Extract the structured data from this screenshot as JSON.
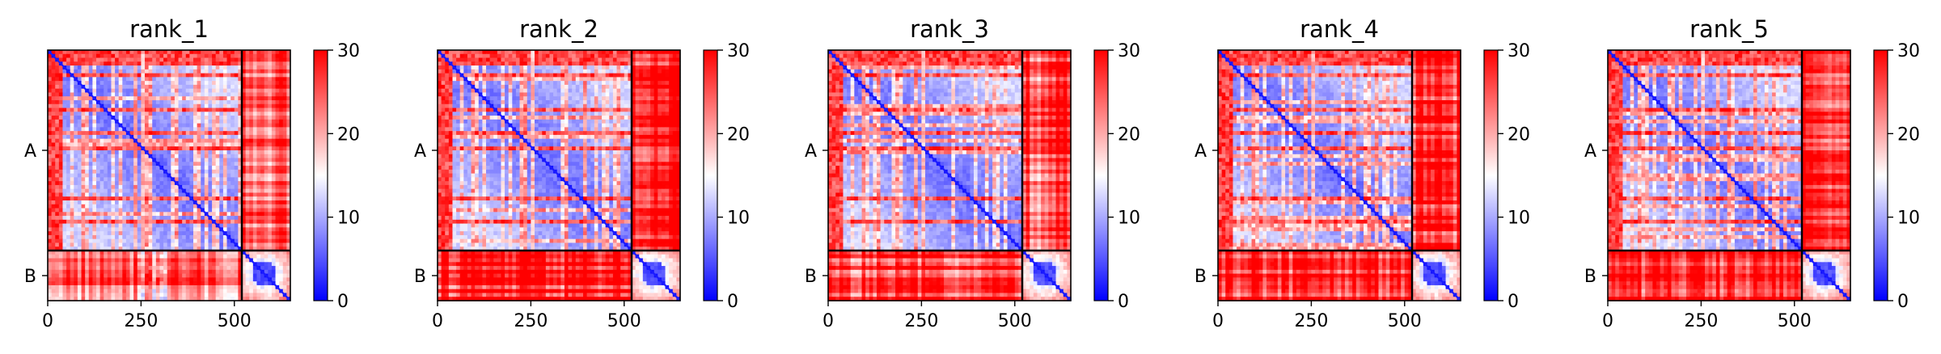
{
  "figure": {
    "background": "#ffffff"
  },
  "chart_data": [
    {
      "type": "heatmap",
      "title": "rank_1",
      "x_ticks": [
        0,
        250,
        500
      ],
      "y_tick_labels": [
        "A",
        "B"
      ],
      "chain_boundary": 520,
      "total_length": 650,
      "colorbar": {
        "min": 0,
        "max": 30,
        "ticks": [
          0,
          10,
          20,
          30
        ],
        "colormap": [
          "#0000ff",
          "#ffffff",
          "#ff0000"
        ]
      },
      "chainB_interchain_mean": 23
    },
    {
      "type": "heatmap",
      "title": "rank_2",
      "x_ticks": [
        0,
        250,
        500
      ],
      "y_tick_labels": [
        "A",
        "B"
      ],
      "chain_boundary": 520,
      "total_length": 650,
      "colorbar": {
        "min": 0,
        "max": 30,
        "ticks": [
          0,
          10,
          20,
          30
        ],
        "colormap": [
          "#0000ff",
          "#ffffff",
          "#ff0000"
        ]
      },
      "chainB_interchain_mean": 27
    },
    {
      "type": "heatmap",
      "title": "rank_3",
      "x_ticks": [
        0,
        250,
        500
      ],
      "y_tick_labels": [
        "A",
        "B"
      ],
      "chain_boundary": 520,
      "total_length": 650,
      "colorbar": {
        "min": 0,
        "max": 30,
        "ticks": [
          0,
          10,
          20,
          30
        ],
        "colormap": [
          "#0000ff",
          "#ffffff",
          "#ff0000"
        ]
      },
      "chainB_interchain_mean": 25
    },
    {
      "type": "heatmap",
      "title": "rank_4",
      "x_ticks": [
        0,
        250,
        500
      ],
      "y_tick_labels": [
        "A",
        "B"
      ],
      "chain_boundary": 520,
      "total_length": 650,
      "colorbar": {
        "min": 0,
        "max": 30,
        "ticks": [
          0,
          10,
          20,
          30
        ],
        "colormap": [
          "#0000ff",
          "#ffffff",
          "#ff0000"
        ]
      },
      "chainB_interchain_mean": 26
    },
    {
      "type": "heatmap",
      "title": "rank_5",
      "x_ticks": [
        0,
        250,
        500
      ],
      "y_tick_labels": [
        "A",
        "B"
      ],
      "chain_boundary": 520,
      "total_length": 650,
      "colorbar": {
        "min": 0,
        "max": 30,
        "ticks": [
          0,
          10,
          20,
          30
        ],
        "colormap": [
          "#0000ff",
          "#ffffff",
          "#ff0000"
        ]
      },
      "chainB_interchain_mean": 27
    }
  ]
}
